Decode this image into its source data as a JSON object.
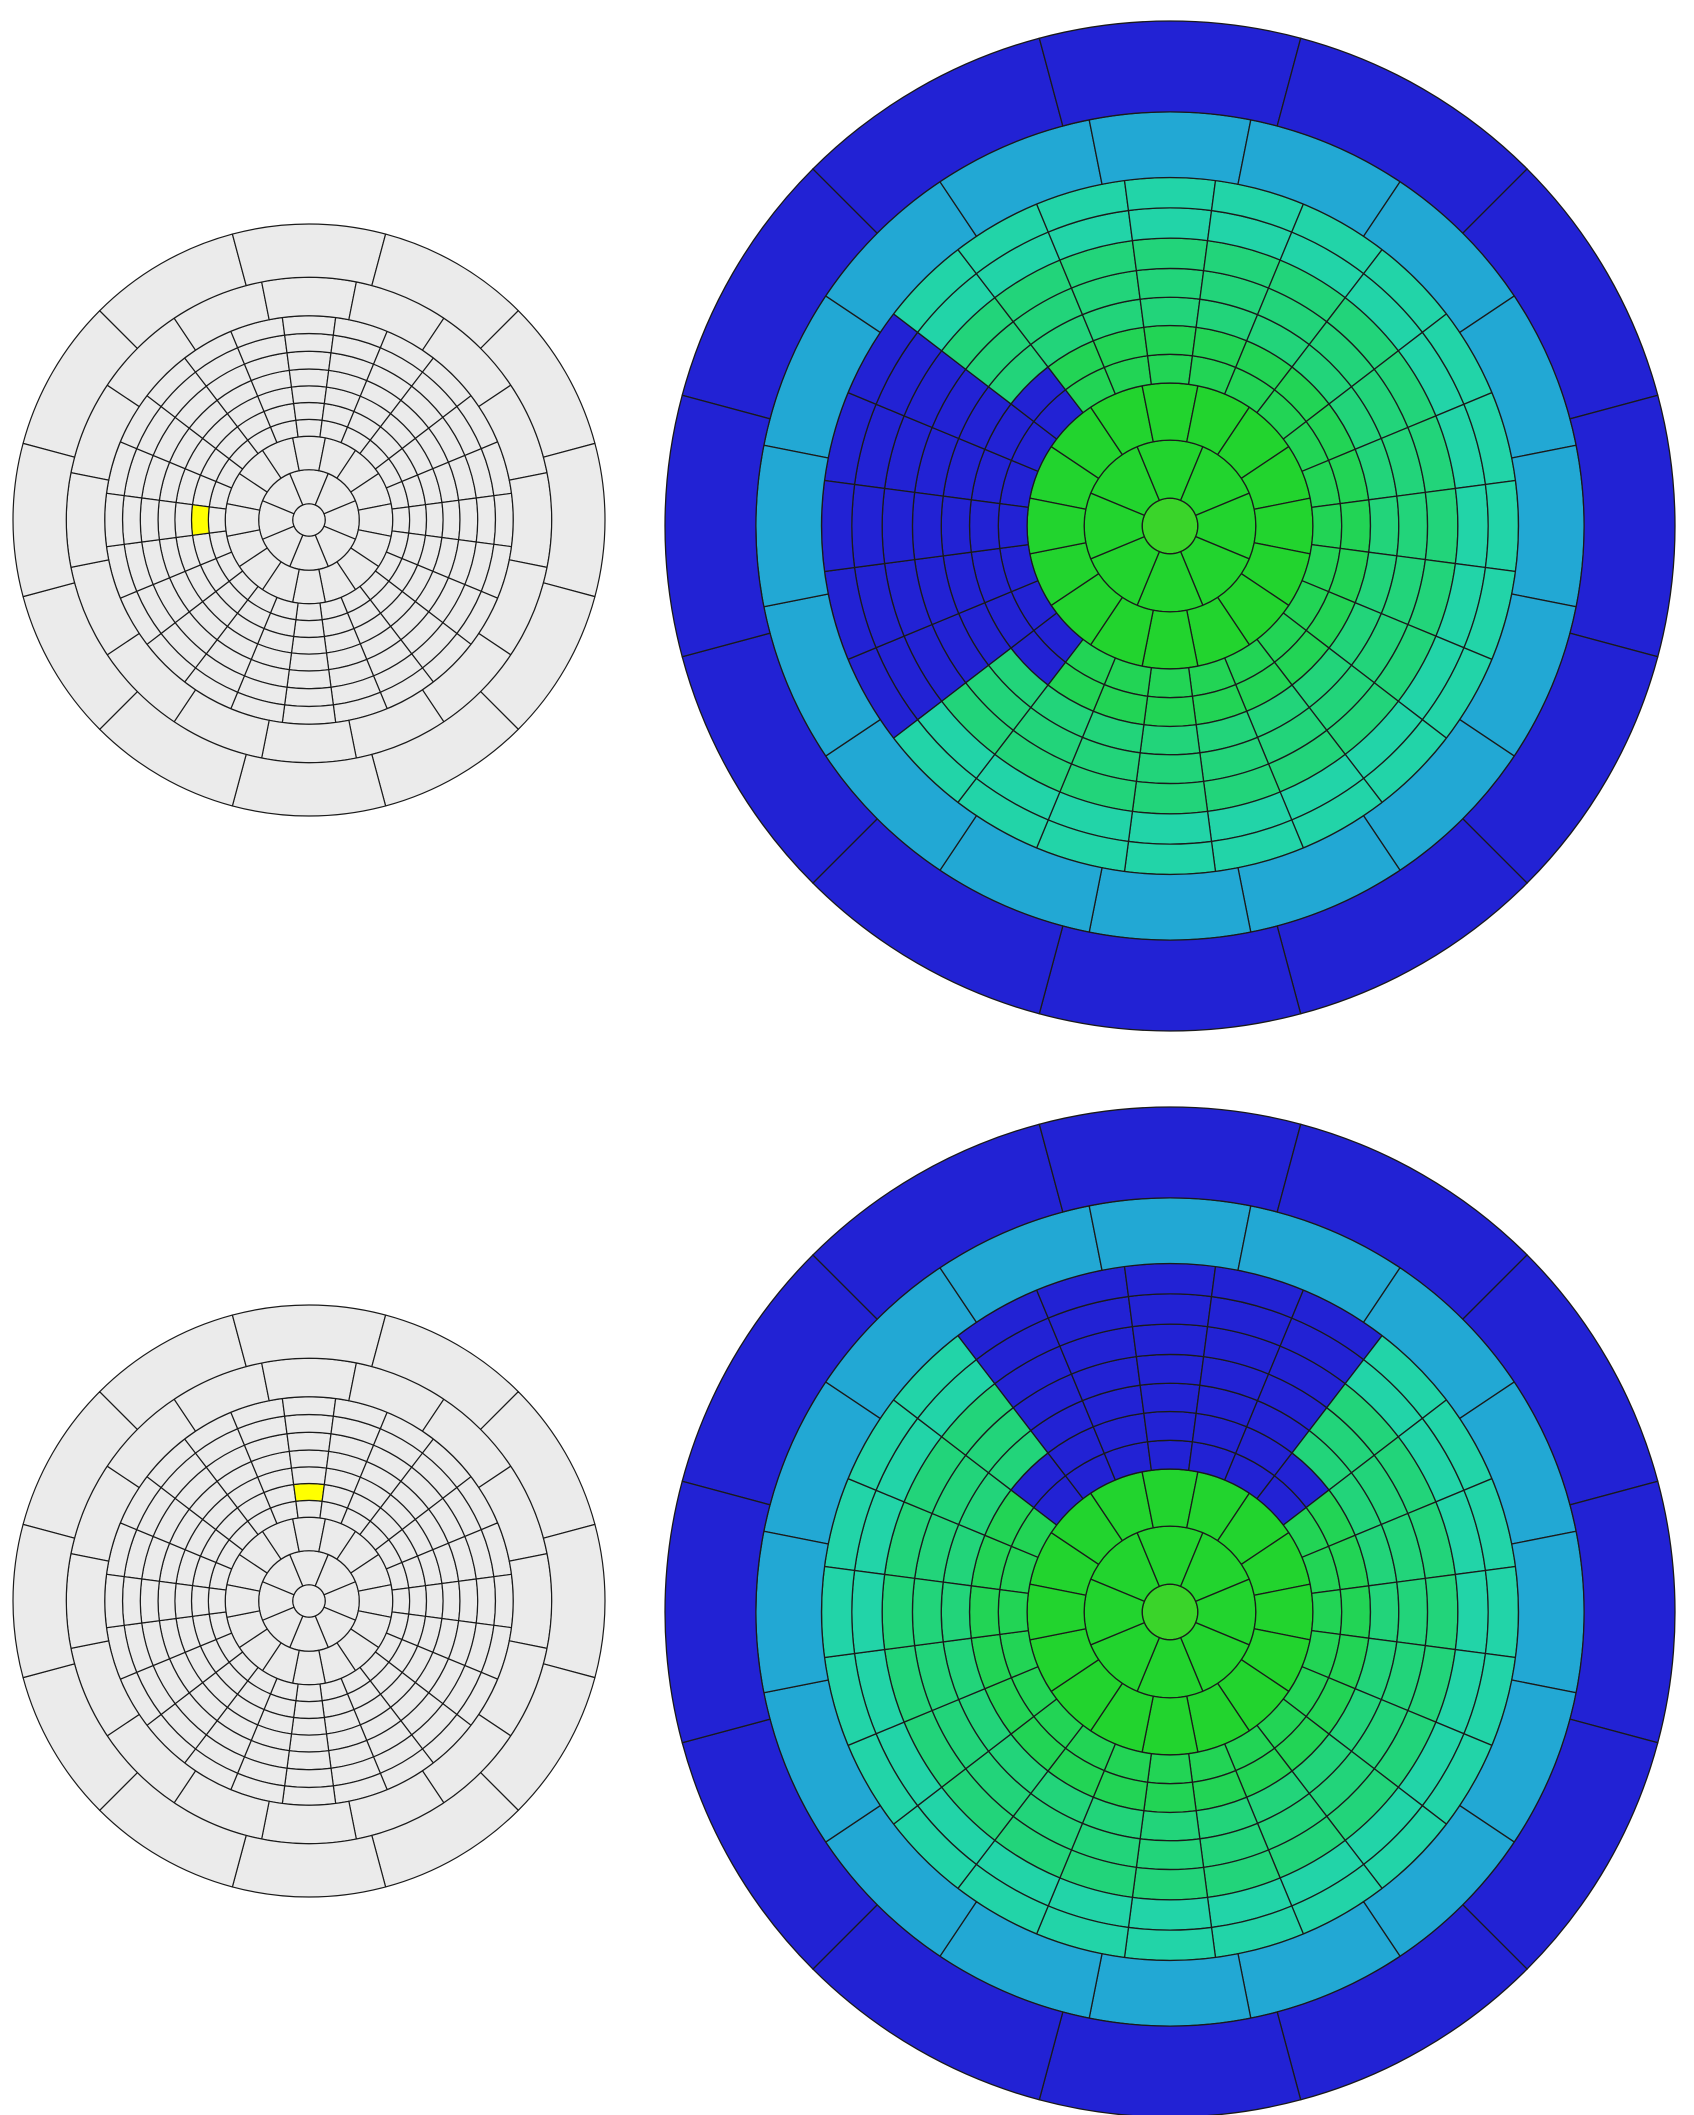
{
  "colors": {
    "background": "#ffffff",
    "cell_gray": "#ebebeb",
    "selected": "#ffff00",
    "outline": "#1a1a1a",
    "c0_blue": "#2222d4",
    "c1_lightblue": "#22a8d4",
    "c2_teal": "#22d4a8",
    "c3_seagreen": "#22d47a",
    "c4_green": "#22d455",
    "c5_brightgreen": "#22d42e",
    "c6_center": "#3ad42a"
  },
  "panels": [
    {
      "name": "top",
      "selected_cell": {
        "ring": 4,
        "direction": "left"
      },
      "pattern": "left-wedge"
    },
    {
      "name": "bottom",
      "selected_cell": {
        "ring": 4,
        "direction": "up"
      },
      "pattern": "top-wedge"
    }
  ],
  "rings": [
    {
      "index": 0,
      "segments": 1
    },
    {
      "index": 1,
      "segments": 8
    },
    {
      "index": 2,
      "segments": 16
    },
    {
      "index": 3,
      "segments": 24
    },
    {
      "index": 4,
      "segments": 24
    },
    {
      "index": 5,
      "segments": 24
    },
    {
      "index": 6,
      "segments": 24
    },
    {
      "index": 7,
      "segments": 24
    },
    {
      "index": 8,
      "segments": 24
    },
    {
      "index": 9,
      "segments": 24
    },
    {
      "index": 10,
      "segments": 16
    },
    {
      "index": 11,
      "segments": 12
    }
  ]
}
